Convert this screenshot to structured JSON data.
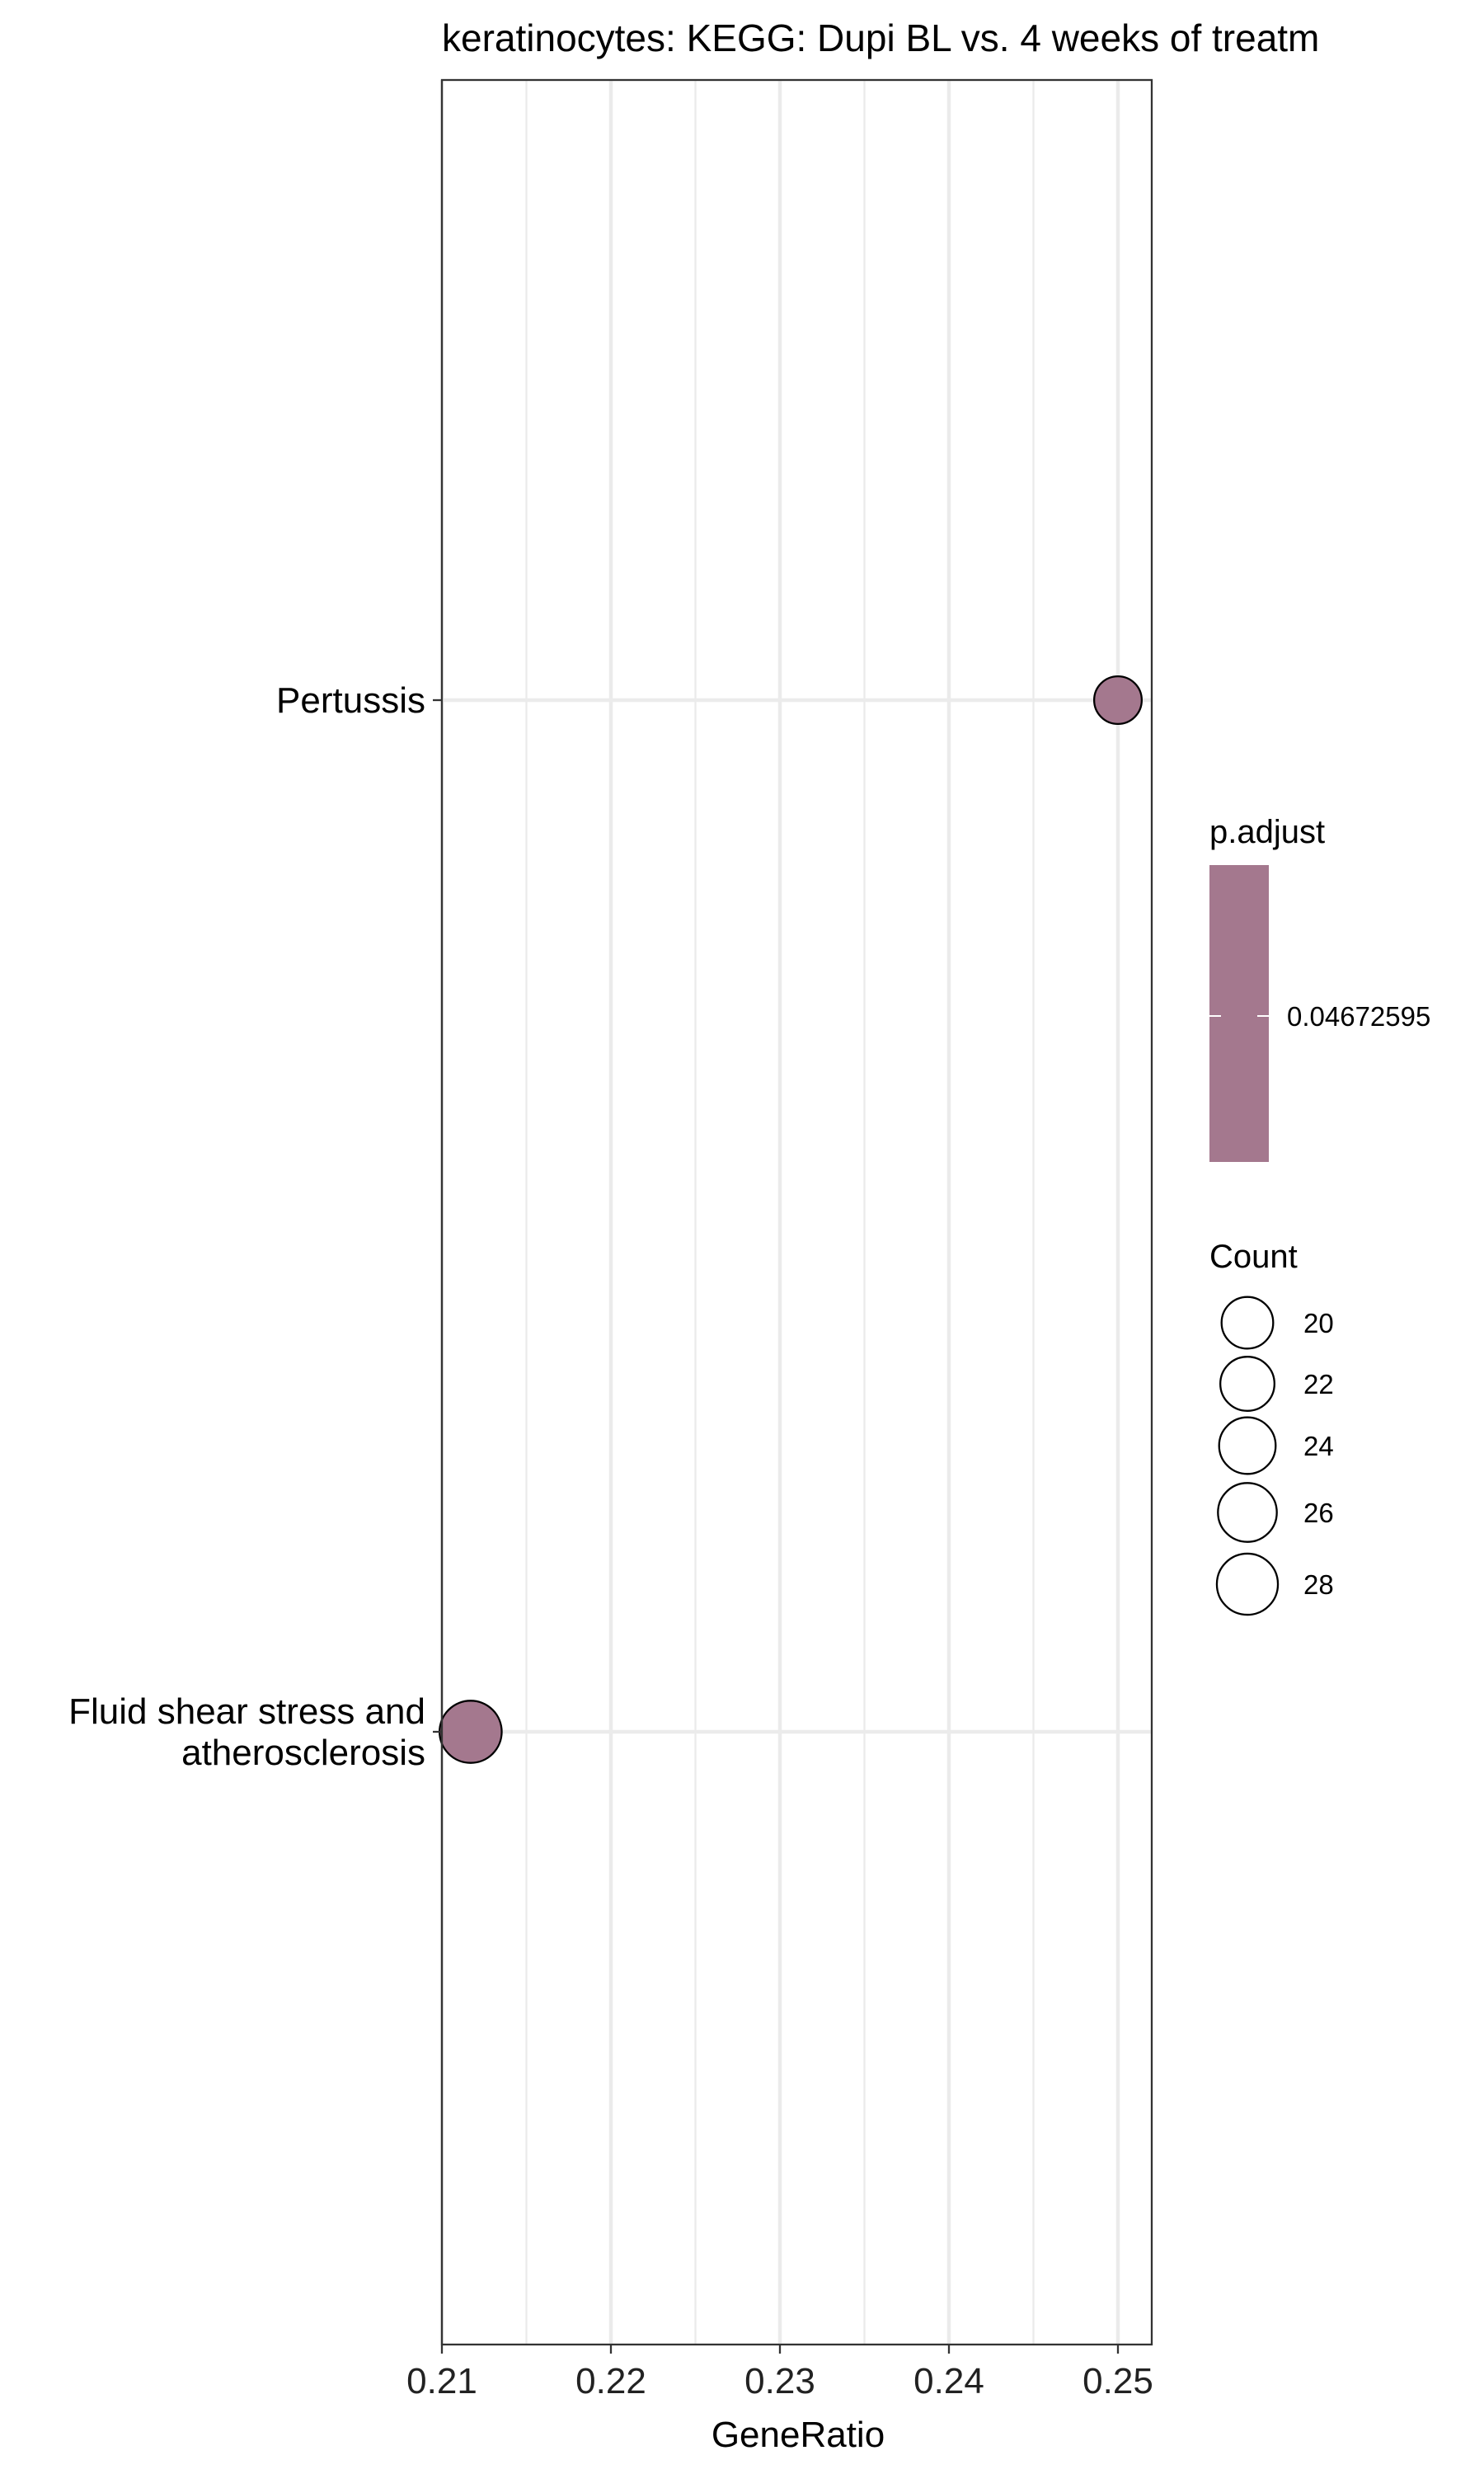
{
  "chart_data": {
    "type": "scatter",
    "title": "keratinocytes: KEGG: Dupi BL vs. 4 weeks of treatm",
    "xlabel": "GeneRatio",
    "ylabel": "",
    "xlim": [
      0.21,
      0.252
    ],
    "x_ticks": [
      "0.21",
      "0.22",
      "0.23",
      "0.24",
      "0.25"
    ],
    "x_tick_values": [
      0.21,
      0.22,
      0.23,
      0.24,
      0.25
    ],
    "categories": [
      "Pertussis",
      "Fluid shear stress and atherosclerosis"
    ],
    "category_lines": [
      [
        "Pertussis"
      ],
      [
        "Fluid shear stress and",
        "atherosclerosis"
      ]
    ],
    "points": [
      {
        "term": "Pertussis",
        "gene_ratio": 0.25,
        "count": 17,
        "p_adjust": 0.04672595
      },
      {
        "term": "Fluid shear stress and atherosclerosis",
        "gene_ratio": 0.2117,
        "count": 29,
        "p_adjust": 0.04672595
      }
    ],
    "grid": true,
    "point_color": "#a4788e",
    "legend_position": "right",
    "color_legend": {
      "title": "p.adjust",
      "labels": [
        "0.04672595"
      ],
      "color": "#a4788e"
    },
    "size_legend": {
      "title": "Count",
      "values": [
        20,
        22,
        24,
        26,
        28
      ],
      "labels": [
        "20",
        "22",
        "24",
        "26",
        "28"
      ]
    }
  }
}
